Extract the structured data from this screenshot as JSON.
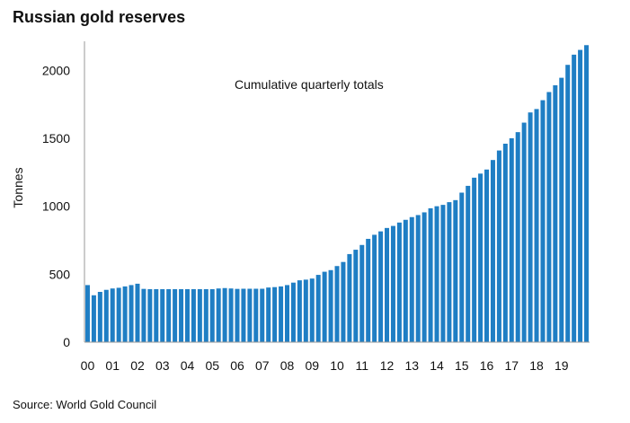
{
  "chart_data": {
    "type": "bar",
    "title": "Russian gold reserves",
    "annotation": "Cumulative quarterly totals",
    "xlabel": "",
    "ylabel": "Tonnes",
    "source": "Source: World Gold Council",
    "ylim": [
      0,
      2200
    ],
    "yticks": [
      0,
      500,
      1000,
      1500,
      2000
    ],
    "year_labels": [
      "00",
      "01",
      "02",
      "03",
      "04",
      "05",
      "06",
      "07",
      "08",
      "09",
      "10",
      "11",
      "12",
      "13",
      "14",
      "15",
      "16",
      "17",
      "18",
      "19"
    ],
    "grid": false,
    "legend": "none",
    "bar_color": "#1F7EC4",
    "axis_color": "#999999",
    "values": [
      420,
      345,
      370,
      385,
      395,
      400,
      410,
      420,
      430,
      392,
      390,
      390,
      390,
      390,
      390,
      390,
      390,
      390,
      390,
      390,
      390,
      395,
      398,
      395,
      392,
      393,
      393,
      393,
      393,
      402,
      405,
      410,
      420,
      438,
      455,
      460,
      468,
      495,
      518,
      530,
      560,
      590,
      648,
      680,
      715,
      760,
      790,
      815,
      840,
      855,
      880,
      900,
      920,
      935,
      955,
      985,
      1000,
      1010,
      1030,
      1045,
      1100,
      1150,
      1210,
      1240,
      1270,
      1340,
      1410,
      1460,
      1500,
      1545,
      1615,
      1690,
      1715,
      1780,
      1840,
      1890,
      1945,
      2040,
      2115,
      2150,
      2185
    ]
  }
}
